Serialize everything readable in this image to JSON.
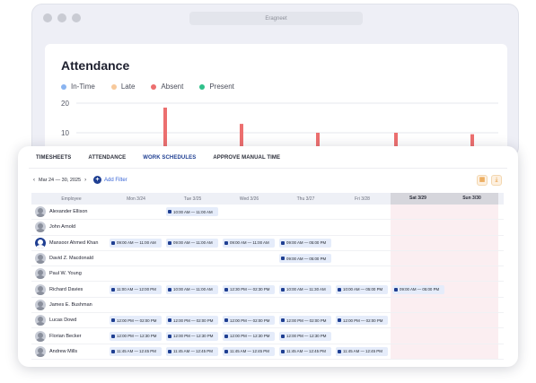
{
  "browser": {
    "url": "Eragneet"
  },
  "attendance": {
    "title": "Attendance",
    "legend": [
      {
        "label": "In-Time",
        "color": "#8ab4f0"
      },
      {
        "label": "Late",
        "color": "#f7c99b"
      },
      {
        "label": "Absent",
        "color": "#ec6f6f"
      },
      {
        "label": "Present",
        "color": "#2fc08a"
      }
    ]
  },
  "chart_data": {
    "type": "bar",
    "yticks": [
      "20",
      "10"
    ],
    "series": [
      {
        "name": "Absent",
        "values": [
          18.5,
          13,
          10,
          10,
          9.5
        ]
      }
    ],
    "ylim": [
      0,
      20
    ]
  },
  "tabs": [
    {
      "label": "TIMESHEETS"
    },
    {
      "label": "ATTENDANCE"
    },
    {
      "label": "WORK SCHEDULES"
    },
    {
      "label": "APPROVE MANUAL TIME"
    }
  ],
  "toolbar": {
    "date_range": "Mar 24 — 30, 2025",
    "add_filter": "Add Filter"
  },
  "grid": {
    "employee_header": "Employee",
    "days": [
      "Mon 3/24",
      "Tue 3/25",
      "Wed 3/26",
      "Thu 3/27",
      "Fri 3/28",
      "Sat 3/29",
      "Sun 3/30"
    ],
    "rows": [
      {
        "name": "Alexander Ellison",
        "avatar": "photo",
        "shifts": [
          "",
          "10:00 AM — 11:00 AM",
          "",
          "",
          "",
          "",
          ""
        ]
      },
      {
        "name": "John Arnold",
        "avatar": "photo",
        "shifts": [
          "",
          "",
          "",
          "",
          "",
          "",
          ""
        ]
      },
      {
        "name": "Mansoor Ahmed Khan",
        "avatar": "logo",
        "shifts": [
          "09:00 AM — 11:00 AM",
          "09:00 AM — 11:00 AM",
          "09:00 AM — 11:00 AM",
          "09:00 AM — 05:00 PM",
          "",
          "",
          ""
        ]
      },
      {
        "name": "David Z. Macdonald",
        "avatar": "photo",
        "shifts": [
          "",
          "",
          "",
          "09:00 AM — 05:00 PM",
          "",
          "",
          ""
        ]
      },
      {
        "name": "Paul W. Young",
        "avatar": "photo",
        "shifts": [
          "",
          "",
          "",
          "",
          "",
          "",
          ""
        ]
      },
      {
        "name": "Richard Davies",
        "avatar": "photo",
        "shifts": [
          "11:00 AM — 12:00 PM",
          "10:00 AM — 11:00 AM",
          "12:30 PM — 02:30 PM",
          "10:00 AM — 11:30 AM",
          "10:00 AM — 05:00 PM",
          "09:00 AM — 05:00 PM",
          ""
        ]
      },
      {
        "name": "James E. Bushman",
        "avatar": "photo",
        "shifts": [
          "",
          "",
          "",
          "",
          "",
          "",
          ""
        ]
      },
      {
        "name": "Lucas Dowd",
        "avatar": "photo",
        "shifts": [
          "12:00 PM — 02:00 PM",
          "12:00 PM — 02:00 PM",
          "12:00 PM — 02:00 PM",
          "12:00 PM — 02:00 PM",
          "12:00 PM — 02:00 PM",
          "",
          ""
        ]
      },
      {
        "name": "Florian Becker",
        "avatar": "photo",
        "shifts": [
          "12:00 PM — 12:30 PM",
          "12:00 PM — 12:30 PM",
          "12:00 PM — 12:30 PM",
          "12:00 PM — 12:30 PM",
          "",
          "",
          ""
        ]
      },
      {
        "name": "Andrew Mills",
        "avatar": "photo",
        "shifts": [
          "11:45 AM — 12:45 PM",
          "11:45 AM — 12:45 PM",
          "11:45 AM — 12:45 PM",
          "11:45 AM — 12:45 PM",
          "11:45 AM — 12:45 PM",
          "",
          ""
        ]
      }
    ]
  }
}
